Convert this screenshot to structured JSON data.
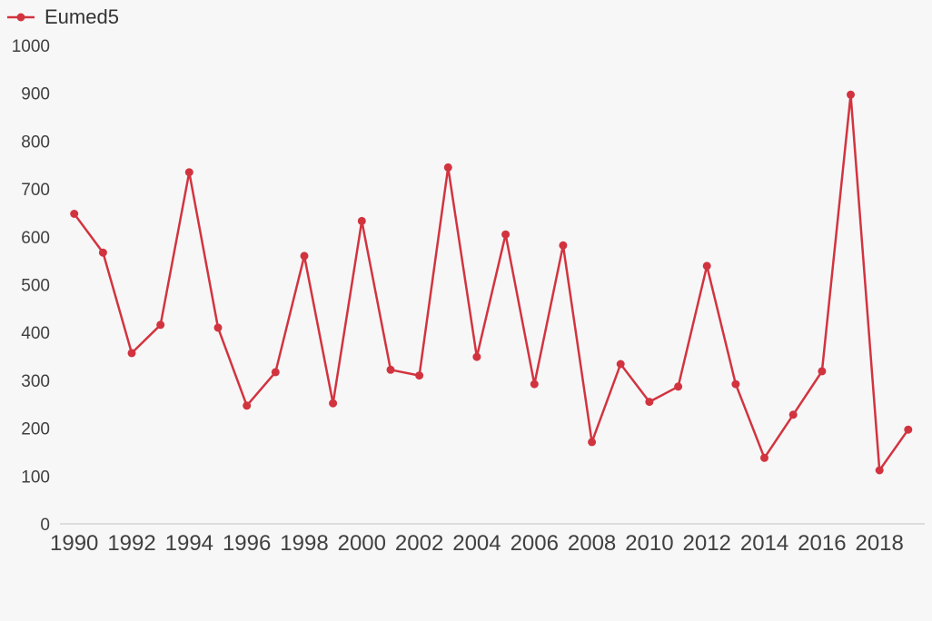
{
  "legend": {
    "label": "Eumed5",
    "color": "#d2343f"
  },
  "colors": {
    "background": "#f7f7f8",
    "axis_line": "#dcdcdc",
    "tick_text": "#404040",
    "series_red": "#d2343f"
  },
  "chart_data": {
    "type": "line",
    "title": "",
    "xlabel": "",
    "ylabel": "",
    "grid": false,
    "legend_position": "top-left",
    "ylim": [
      0,
      1000
    ],
    "y_ticks": [
      0,
      100,
      200,
      300,
      400,
      500,
      600,
      700,
      800,
      900,
      1000
    ],
    "x_tick_labels": [
      1990,
      1992,
      1994,
      1996,
      1998,
      2000,
      2002,
      2004,
      2006,
      2008,
      2010,
      2012,
      2014,
      2016,
      2018
    ],
    "x": [
      1990,
      1991,
      1992,
      1993,
      1994,
      1995,
      1996,
      1997,
      1998,
      1999,
      2000,
      2001,
      2002,
      2003,
      2004,
      2005,
      2006,
      2007,
      2008,
      2009,
      2010,
      2011,
      2012,
      2013,
      2014,
      2015,
      2016,
      2017,
      2018,
      2019
    ],
    "series": [
      {
        "name": "Eumed5",
        "color": "#d2343f",
        "marker": "circle",
        "values": [
          648,
          567,
          357,
          416,
          735,
          410,
          247,
          317,
          560,
          252,
          633,
          322,
          310,
          745,
          349,
          605,
          292,
          582,
          171,
          334,
          255,
          287,
          539,
          292,
          138,
          228,
          319,
          897,
          112,
          197
        ]
      }
    ]
  }
}
